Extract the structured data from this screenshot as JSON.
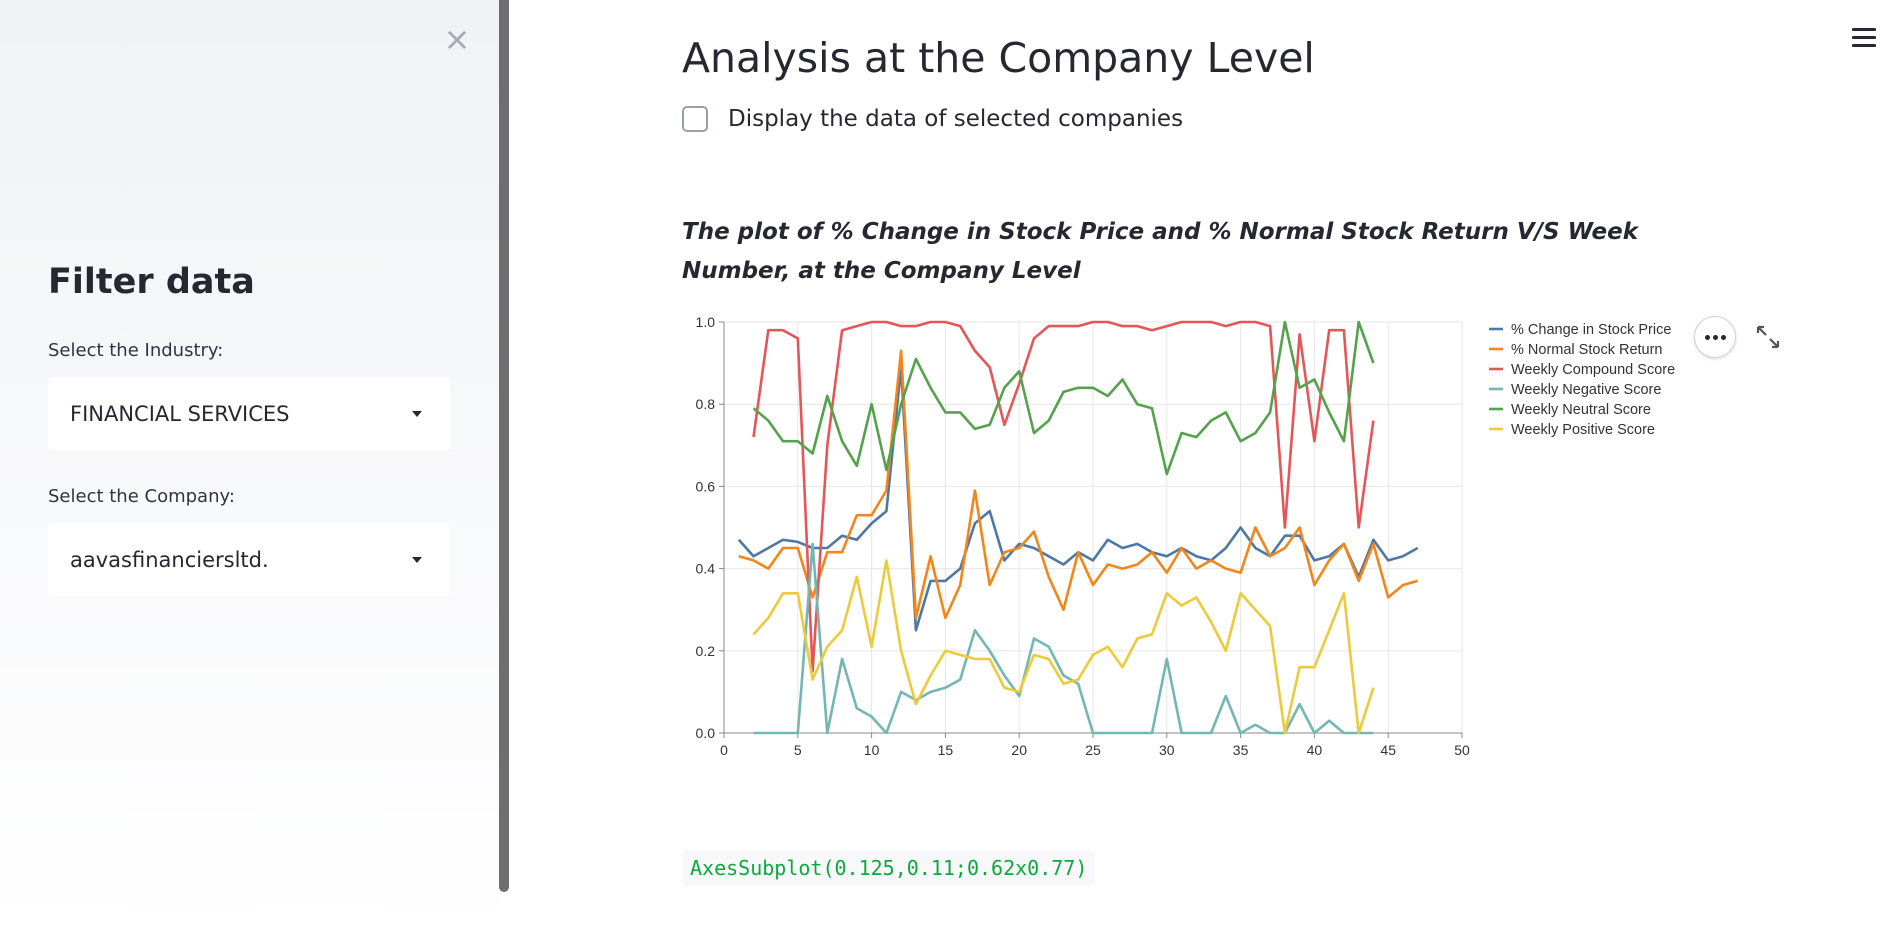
{
  "sidebar": {
    "close_icon": "×",
    "title": "Filter data",
    "industry_label": "Select the Industry:",
    "industry_value": "FINANCIAL SERVICES",
    "company_label": "Select the Company:",
    "company_value": "aavasfinanciersltd."
  },
  "main": {
    "title": "Analysis at the Company Level",
    "checkbox_label": "Display the data of selected companies",
    "checkbox_checked": false,
    "plot_caption": "The plot of % Change in Stock Price and % Normal Stock Return V/S Week Number, at the Company Level",
    "code_output": "AxesSubplot(0.125,0.11;0.62x0.77)"
  },
  "icons": {
    "close": "close-icon",
    "more": "more-icon",
    "expand": "expand-icon",
    "menu": "hamburger-menu-icon"
  },
  "colors": {
    "accent_green_text": "#09ab3b"
  },
  "chart_data": {
    "type": "line",
    "xlim": [
      0,
      50
    ],
    "ylim": [
      0,
      1
    ],
    "x_ticks": [
      0,
      5,
      10,
      15,
      20,
      25,
      30,
      35,
      40,
      45,
      50
    ],
    "y_ticks": [
      "0.0",
      "0.2",
      "0.4",
      "0.6",
      "0.8",
      "1.0"
    ],
    "grid": true,
    "legend_position": "right",
    "series": [
      {
        "name": "% Change in Stock Price",
        "color": "#4c78a8",
        "x": [
          1,
          2,
          3,
          4,
          5,
          6,
          7,
          8,
          9,
          10,
          11,
          12,
          13,
          14,
          15,
          16,
          17,
          18,
          19,
          20,
          21,
          22,
          23,
          24,
          25,
          26,
          27,
          28,
          29,
          30,
          31,
          32,
          33,
          34,
          35,
          36,
          37,
          38,
          39,
          40,
          41,
          42,
          43,
          44,
          45,
          46,
          47
        ],
        "y": [
          0.47,
          0.43,
          0.45,
          0.47,
          0.465,
          0.45,
          0.45,
          0.48,
          0.47,
          0.51,
          0.54,
          0.89,
          0.25,
          0.37,
          0.37,
          0.4,
          0.51,
          0.54,
          0.42,
          0.46,
          0.45,
          0.43,
          0.41,
          0.44,
          0.42,
          0.47,
          0.45,
          0.46,
          0.44,
          0.43,
          0.45,
          0.43,
          0.42,
          0.45,
          0.5,
          0.45,
          0.43,
          0.48,
          0.48,
          0.42,
          0.43,
          0.46,
          0.38,
          0.47,
          0.42,
          0.43,
          0.45
        ]
      },
      {
        "name": "% Normal Stock Return",
        "color": "#f58518",
        "x": [
          1,
          2,
          3,
          4,
          5,
          6,
          7,
          8,
          9,
          10,
          11,
          12,
          13,
          14,
          15,
          16,
          17,
          18,
          19,
          20,
          21,
          22,
          23,
          24,
          25,
          26,
          27,
          28,
          29,
          30,
          31,
          32,
          33,
          34,
          35,
          36,
          37,
          38,
          39,
          40,
          41,
          42,
          43,
          44,
          45,
          46,
          47
        ],
        "y": [
          0.43,
          0.42,
          0.4,
          0.45,
          0.45,
          0.33,
          0.44,
          0.44,
          0.53,
          0.53,
          0.59,
          0.93,
          0.28,
          0.43,
          0.28,
          0.36,
          0.59,
          0.36,
          0.44,
          0.45,
          0.49,
          0.38,
          0.3,
          0.44,
          0.36,
          0.41,
          0.4,
          0.41,
          0.44,
          0.39,
          0.45,
          0.4,
          0.42,
          0.4,
          0.39,
          0.5,
          0.43,
          0.45,
          0.5,
          0.36,
          0.42,
          0.46,
          0.37,
          0.46,
          0.33,
          0.36,
          0.37
        ]
      },
      {
        "name": "Weekly Compound Score",
        "color": "#e45756",
        "x": [
          2,
          3,
          4,
          5,
          6,
          7,
          8,
          9,
          10,
          11,
          12,
          13,
          14,
          15,
          16,
          17,
          18,
          19,
          20,
          21,
          22,
          23,
          24,
          25,
          26,
          27,
          28,
          29,
          30,
          31,
          32,
          33,
          34,
          35,
          36,
          37,
          38,
          39,
          40,
          41,
          42,
          43,
          44
        ],
        "y": [
          0.72,
          0.98,
          0.98,
          0.96,
          0.15,
          0.7,
          0.98,
          0.99,
          1.0,
          1.0,
          0.99,
          0.99,
          1.0,
          1.0,
          0.99,
          0.93,
          0.89,
          0.75,
          0.85,
          0.96,
          0.99,
          0.99,
          0.99,
          1.0,
          1.0,
          0.99,
          0.99,
          0.98,
          0.99,
          1.0,
          1.0,
          1.0,
          0.99,
          1.0,
          1.0,
          0.99,
          0.5,
          0.97,
          0.71,
          0.98,
          0.98,
          0.5,
          0.76
        ]
      },
      {
        "name": "Weekly Negative Score",
        "color": "#72b7b2",
        "x": [
          2,
          3,
          4,
          5,
          6,
          7,
          8,
          9,
          10,
          11,
          12,
          13,
          14,
          15,
          16,
          17,
          18,
          19,
          20,
          21,
          22,
          23,
          24,
          25,
          26,
          27,
          28,
          29,
          30,
          31,
          32,
          33,
          34,
          35,
          36,
          37,
          38,
          39,
          40,
          41,
          42,
          43,
          44
        ],
        "y": [
          0.0,
          0.0,
          0.0,
          0.0,
          0.46,
          0.0,
          0.18,
          0.06,
          0.04,
          0.0,
          0.1,
          0.08,
          0.1,
          0.11,
          0.13,
          0.25,
          0.2,
          0.14,
          0.09,
          0.23,
          0.21,
          0.14,
          0.12,
          0.0,
          0.0,
          0.0,
          0.0,
          0.0,
          0.18,
          0.0,
          0.0,
          0.0,
          0.09,
          0.0,
          0.02,
          0.0,
          0.0,
          0.07,
          0.0,
          0.03,
          0.0,
          0.0,
          0.0
        ]
      },
      {
        "name": "Weekly Neutral Score",
        "color": "#54a24b",
        "x": [
          2,
          3,
          4,
          5,
          6,
          7,
          8,
          9,
          10,
          11,
          12,
          13,
          14,
          15,
          16,
          17,
          18,
          19,
          20,
          21,
          22,
          23,
          24,
          25,
          26,
          27,
          28,
          29,
          30,
          31,
          32,
          33,
          34,
          35,
          36,
          37,
          38,
          39,
          40,
          41,
          42,
          43,
          44
        ],
        "y": [
          0.79,
          0.76,
          0.71,
          0.71,
          0.68,
          0.82,
          0.71,
          0.65,
          0.8,
          0.64,
          0.8,
          0.91,
          0.84,
          0.78,
          0.78,
          0.74,
          0.75,
          0.84,
          0.88,
          0.73,
          0.76,
          0.83,
          0.84,
          0.84,
          0.82,
          0.86,
          0.8,
          0.79,
          0.63,
          0.73,
          0.72,
          0.76,
          0.78,
          0.71,
          0.73,
          0.78,
          1.0,
          0.84,
          0.86,
          0.78,
          0.71,
          1.0,
          0.9
        ]
      },
      {
        "name": "Weekly Positive Score",
        "color": "#eeca3b",
        "x": [
          2,
          3,
          4,
          5,
          6,
          7,
          8,
          9,
          10,
          11,
          12,
          13,
          14,
          15,
          16,
          17,
          18,
          19,
          20,
          21,
          22,
          23,
          24,
          25,
          26,
          27,
          28,
          29,
          30,
          31,
          32,
          33,
          34,
          35,
          36,
          37,
          38,
          39,
          40,
          41,
          42,
          43,
          44
        ],
        "y": [
          0.24,
          0.28,
          0.34,
          0.34,
          0.13,
          0.21,
          0.25,
          0.38,
          0.21,
          0.42,
          0.2,
          0.07,
          0.14,
          0.2,
          0.19,
          0.18,
          0.18,
          0.11,
          0.1,
          0.19,
          0.18,
          0.12,
          0.13,
          0.19,
          0.21,
          0.16,
          0.23,
          0.24,
          0.34,
          0.31,
          0.33,
          0.27,
          0.2,
          0.34,
          0.3,
          0.26,
          0.0,
          0.16,
          0.16,
          0.25,
          0.34,
          0.0,
          0.11
        ]
      }
    ]
  }
}
